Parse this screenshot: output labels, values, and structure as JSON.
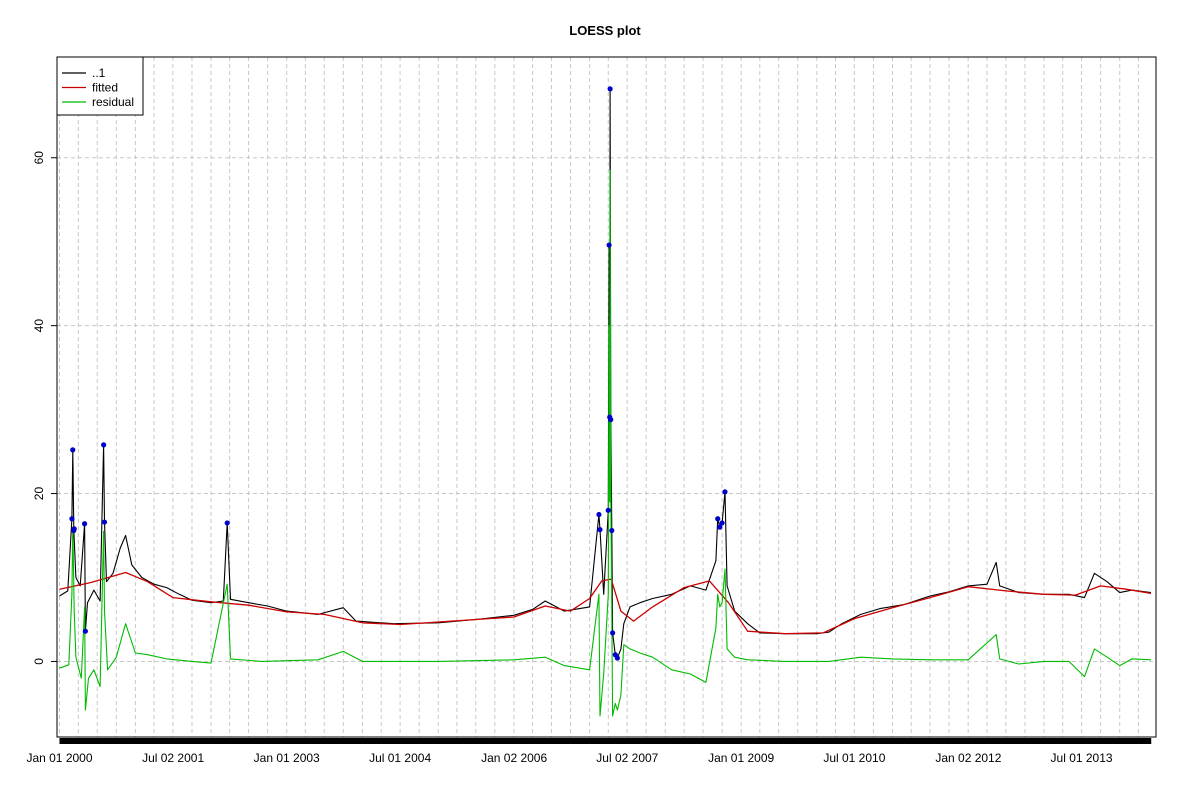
{
  "chart_data": {
    "type": "line",
    "title": "LOESS plot",
    "xlabel": "",
    "ylabel": "",
    "x_range": [
      "1999-12-20",
      "2014-06-25"
    ],
    "ylim": [
      -9,
      72
    ],
    "grid": true,
    "legend_position": "top-left",
    "x_ticks": [
      {
        "date": "2000-01-01",
        "label": "Jan 01 2000"
      },
      {
        "date": "2001-07-02",
        "label": "Jul 02 2001"
      },
      {
        "date": "2003-01-01",
        "label": "Jan 01 2003"
      },
      {
        "date": "2004-07-01",
        "label": "Jul 01 2004"
      },
      {
        "date": "2006-01-02",
        "label": "Jan 02 2006"
      },
      {
        "date": "2007-07-02",
        "label": "Jul 02 2007"
      },
      {
        "date": "2009-01-01",
        "label": "Jan 01 2009"
      },
      {
        "date": "2010-07-01",
        "label": "Jul 01 2010"
      },
      {
        "date": "2012-01-02",
        "label": "Jan 02 2012"
      },
      {
        "date": "2013-07-01",
        "label": "Jul 01 2013"
      }
    ],
    "y_ticks": [
      0,
      20,
      40,
      60
    ],
    "series": [
      {
        "name": "..1",
        "color": "#000000",
        "points": [
          [
            "2000-01-01",
            7.8
          ],
          [
            "2000-02-10",
            8.4
          ],
          [
            "2000-03-01",
            17.0
          ],
          [
            "2000-03-05",
            25.2
          ],
          [
            "2000-03-10",
            15.6
          ],
          [
            "2000-03-20",
            10.0
          ],
          [
            "2000-04-10",
            9.0
          ],
          [
            "2000-05-01",
            16.4
          ],
          [
            "2000-05-05",
            3.6
          ],
          [
            "2000-05-15",
            7.0
          ],
          [
            "2000-06-15",
            8.5
          ],
          [
            "2000-07-15",
            7.2
          ],
          [
            "2000-08-01",
            25.8
          ],
          [
            "2000-08-05",
            16.6
          ],
          [
            "2000-08-15",
            9.5
          ],
          [
            "2000-09-15",
            10.5
          ],
          [
            "2000-10-20",
            13.5
          ],
          [
            "2000-11-15",
            15.0
          ],
          [
            "2000-12-15",
            11.5
          ],
          [
            "2001-02-01",
            10.0
          ],
          [
            "2001-04-01",
            9.2
          ],
          [
            "2001-06-01",
            8.8
          ],
          [
            "2001-08-01",
            8.0
          ],
          [
            "2001-10-01",
            7.3
          ],
          [
            "2002-01-01",
            7.0
          ],
          [
            "2002-03-01",
            7.2
          ],
          [
            "2002-03-20",
            16.5
          ],
          [
            "2002-04-05",
            7.4
          ],
          [
            "2002-07-01",
            7.0
          ],
          [
            "2002-10-01",
            6.6
          ],
          [
            "2003-01-01",
            6.0
          ],
          [
            "2003-06-01",
            5.6
          ],
          [
            "2003-10-01",
            6.4
          ],
          [
            "2003-12-01",
            4.8
          ],
          [
            "2004-06-01",
            4.5
          ],
          [
            "2005-01-01",
            4.6
          ],
          [
            "2005-07-01",
            5.0
          ],
          [
            "2006-01-01",
            5.5
          ],
          [
            "2006-04-01",
            6.2
          ],
          [
            "2006-06-01",
            7.2
          ],
          [
            "2006-09-01",
            6.0
          ],
          [
            "2007-01-01",
            6.5
          ],
          [
            "2007-02-15",
            17.5
          ],
          [
            "2007-02-20",
            15.7
          ],
          [
            "2007-03-10",
            8.0
          ],
          [
            "2007-04-01",
            18.0
          ],
          [
            "2007-04-05",
            49.6
          ],
          [
            "2007-04-08",
            29.1
          ],
          [
            "2007-04-10",
            68.2
          ],
          [
            "2007-04-13",
            28.8
          ],
          [
            "2007-04-18",
            15.6
          ],
          [
            "2007-04-22",
            3.4
          ],
          [
            "2007-05-05",
            0.8
          ],
          [
            "2007-05-15",
            0.4
          ],
          [
            "2007-06-01",
            1.5
          ],
          [
            "2007-06-15",
            4.5
          ],
          [
            "2007-07-15",
            6.5
          ],
          [
            "2007-09-01",
            7.0
          ],
          [
            "2007-11-01",
            7.5
          ],
          [
            "2008-02-01",
            8.0
          ],
          [
            "2008-05-01",
            9.0
          ],
          [
            "2008-07-15",
            8.5
          ],
          [
            "2008-09-01",
            12.0
          ],
          [
            "2008-09-10",
            17.0
          ],
          [
            "2008-09-20",
            16.0
          ],
          [
            "2008-10-01",
            16.5
          ],
          [
            "2008-10-15",
            20.2
          ],
          [
            "2008-10-25",
            9.0
          ],
          [
            "2008-12-01",
            6.0
          ],
          [
            "2009-02-01",
            4.5
          ],
          [
            "2009-04-01",
            3.4
          ],
          [
            "2009-08-01",
            3.3
          ],
          [
            "2010-01-01",
            3.3
          ],
          [
            "2010-03-01",
            3.5
          ],
          [
            "2010-05-01",
            4.5
          ],
          [
            "2010-08-01",
            5.6
          ],
          [
            "2010-11-01",
            6.3
          ],
          [
            "2011-03-01",
            6.8
          ],
          [
            "2011-07-01",
            7.8
          ],
          [
            "2011-10-01",
            8.3
          ],
          [
            "2012-01-01",
            9.0
          ],
          [
            "2012-04-01",
            9.2
          ],
          [
            "2012-05-15",
            11.8
          ],
          [
            "2012-06-01",
            9.0
          ],
          [
            "2012-09-01",
            8.2
          ],
          [
            "2013-01-01",
            8.0
          ],
          [
            "2013-05-01",
            8.0
          ],
          [
            "2013-07-15",
            7.6
          ],
          [
            "2013-09-01",
            10.5
          ],
          [
            "2013-11-01",
            9.5
          ],
          [
            "2014-01-01",
            8.2
          ],
          [
            "2014-03-01",
            8.5
          ],
          [
            "2014-06-01",
            8.2
          ]
        ]
      },
      {
        "name": "fitted",
        "color": "#cc0000",
        "points": [
          [
            "2000-01-01",
            8.6
          ],
          [
            "2000-06-01",
            9.4
          ],
          [
            "2000-11-15",
            10.6
          ],
          [
            "2001-03-01",
            9.5
          ],
          [
            "2001-07-01",
            7.6
          ],
          [
            "2002-01-01",
            7.1
          ],
          [
            "2002-07-01",
            6.7
          ],
          [
            "2003-01-01",
            5.9
          ],
          [
            "2003-07-01",
            5.6
          ],
          [
            "2004-01-01",
            4.6
          ],
          [
            "2004-07-01",
            4.4
          ],
          [
            "2005-01-01",
            4.7
          ],
          [
            "2005-07-01",
            5.0
          ],
          [
            "2006-01-01",
            5.3
          ],
          [
            "2006-06-01",
            6.6
          ],
          [
            "2006-10-01",
            6.0
          ],
          [
            "2007-01-01",
            7.5
          ],
          [
            "2007-03-01",
            9.6
          ],
          [
            "2007-04-15",
            9.8
          ],
          [
            "2007-06-01",
            6.0
          ],
          [
            "2007-08-01",
            4.8
          ],
          [
            "2007-11-01",
            6.5
          ],
          [
            "2008-04-01",
            8.8
          ],
          [
            "2008-08-01",
            9.6
          ],
          [
            "2008-11-01",
            7.0
          ],
          [
            "2009-02-01",
            3.6
          ],
          [
            "2009-08-01",
            3.3
          ],
          [
            "2010-02-01",
            3.4
          ],
          [
            "2010-07-01",
            5.1
          ],
          [
            "2011-01-01",
            6.4
          ],
          [
            "2011-07-01",
            7.6
          ],
          [
            "2012-01-01",
            8.9
          ],
          [
            "2012-07-01",
            8.4
          ],
          [
            "2013-01-01",
            8.0
          ],
          [
            "2013-06-01",
            7.9
          ],
          [
            "2013-10-01",
            9.0
          ],
          [
            "2014-02-01",
            8.6
          ],
          [
            "2014-06-01",
            8.1
          ]
        ]
      },
      {
        "name": "residual",
        "color": "#00bb00",
        "points": [
          [
            "2000-01-01",
            -0.8
          ],
          [
            "2000-02-15",
            -0.4
          ],
          [
            "2000-03-01",
            8.0
          ],
          [
            "2000-03-05",
            16.0
          ],
          [
            "2000-03-12",
            6.0
          ],
          [
            "2000-03-20",
            0.5
          ],
          [
            "2000-04-15",
            -2.0
          ],
          [
            "2000-05-01",
            6.5
          ],
          [
            "2000-05-05",
            -5.8
          ],
          [
            "2000-05-20",
            -2.0
          ],
          [
            "2000-06-15",
            -1.0
          ],
          [
            "2000-07-15",
            -3.0
          ],
          [
            "2000-08-01",
            15.5
          ],
          [
            "2000-08-05",
            6.0
          ],
          [
            "2000-08-20",
            -1.0
          ],
          [
            "2000-10-01",
            0.5
          ],
          [
            "2000-11-15",
            4.5
          ],
          [
            "2001-01-01",
            1.0
          ],
          [
            "2001-03-01",
            0.8
          ],
          [
            "2001-06-01",
            0.3
          ],
          [
            "2001-10-01",
            0.0
          ],
          [
            "2002-01-01",
            -0.2
          ],
          [
            "2002-03-20",
            9.2
          ],
          [
            "2002-04-05",
            0.3
          ],
          [
            "2002-09-01",
            0.0
          ],
          [
            "2003-06-01",
            0.2
          ],
          [
            "2003-10-01",
            1.2
          ],
          [
            "2004-01-01",
            0.0
          ],
          [
            "2005-01-01",
            0.0
          ],
          [
            "2006-01-01",
            0.2
          ],
          [
            "2006-06-01",
            0.5
          ],
          [
            "2006-09-01",
            -0.5
          ],
          [
            "2007-01-01",
            -1.0
          ],
          [
            "2007-02-15",
            8.0
          ],
          [
            "2007-02-20",
            -6.5
          ],
          [
            "2007-03-10",
            -1.5
          ],
          [
            "2007-04-01",
            8.0
          ],
          [
            "2007-04-05",
            40.0
          ],
          [
            "2007-04-08",
            19.0
          ],
          [
            "2007-04-10",
            58.5
          ],
          [
            "2007-04-13",
            19.0
          ],
          [
            "2007-04-18",
            6.0
          ],
          [
            "2007-04-22",
            -6.5
          ],
          [
            "2007-05-05",
            -5.0
          ],
          [
            "2007-05-15",
            -5.8
          ],
          [
            "2007-06-01",
            -4.0
          ],
          [
            "2007-06-15",
            2.0
          ],
          [
            "2007-07-15",
            1.5
          ],
          [
            "2007-09-01",
            1.0
          ],
          [
            "2007-11-01",
            0.5
          ],
          [
            "2008-02-01",
            -1.0
          ],
          [
            "2008-05-01",
            -1.5
          ],
          [
            "2008-07-15",
            -2.5
          ],
          [
            "2008-09-01",
            4.0
          ],
          [
            "2008-09-10",
            8.0
          ],
          [
            "2008-09-20",
            6.5
          ],
          [
            "2008-10-01",
            7.0
          ],
          [
            "2008-10-15",
            11.0
          ],
          [
            "2008-10-25",
            1.5
          ],
          [
            "2008-12-01",
            0.5
          ],
          [
            "2009-02-01",
            0.2
          ],
          [
            "2009-08-01",
            0.0
          ],
          [
            "2010-03-01",
            0.0
          ],
          [
            "2010-08-01",
            0.5
          ],
          [
            "2011-01-01",
            0.3
          ],
          [
            "2011-07-01",
            0.2
          ],
          [
            "2012-01-01",
            0.2
          ],
          [
            "2012-05-15",
            3.2
          ],
          [
            "2012-06-01",
            0.3
          ],
          [
            "2012-09-01",
            -0.3
          ],
          [
            "2013-01-01",
            0.0
          ],
          [
            "2013-05-01",
            0.0
          ],
          [
            "2013-07-15",
            -1.8
          ],
          [
            "2013-09-01",
            1.5
          ],
          [
            "2013-11-01",
            0.5
          ],
          [
            "2014-01-01",
            -0.5
          ],
          [
            "2014-03-01",
            0.3
          ],
          [
            "2014-06-01",
            0.2
          ]
        ]
      }
    ],
    "highlighted_points": {
      "color": "#0000cc",
      "points": [
        [
          "2000-03-01",
          17.0
        ],
        [
          "2000-03-05",
          25.2
        ],
        [
          "2000-03-10",
          15.6
        ],
        [
          "2000-03-12",
          15.8
        ],
        [
          "2000-05-01",
          16.4
        ],
        [
          "2000-05-05",
          3.6
        ],
        [
          "2000-08-01",
          25.8
        ],
        [
          "2000-08-05",
          16.6
        ],
        [
          "2002-03-20",
          16.5
        ],
        [
          "2007-02-15",
          17.5
        ],
        [
          "2007-02-20",
          15.7
        ],
        [
          "2007-04-01",
          18.0
        ],
        [
          "2007-04-05",
          49.6
        ],
        [
          "2007-04-08",
          29.1
        ],
        [
          "2007-04-10",
          68.2
        ],
        [
          "2007-04-13",
          28.8
        ],
        [
          "2007-04-18",
          15.6
        ],
        [
          "2007-04-22",
          3.4
        ],
        [
          "2007-05-05",
          0.8
        ],
        [
          "2007-05-15",
          0.4
        ],
        [
          "2008-09-10",
          17.0
        ],
        [
          "2008-09-20",
          16.0
        ],
        [
          "2008-10-01",
          16.5
        ],
        [
          "2008-10-15",
          20.2
        ]
      ]
    }
  }
}
